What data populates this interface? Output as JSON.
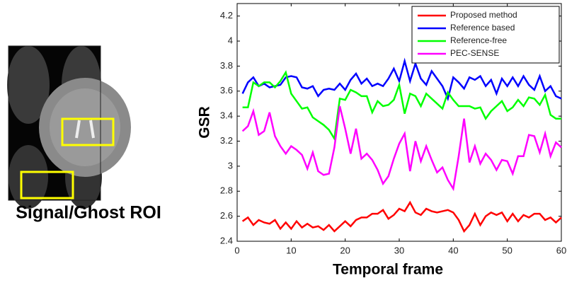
{
  "image_caption": "Signal/Ghost ROI",
  "chart_data": {
    "type": "line",
    "xlabel": "Temporal frame",
    "ylabel": "GSR",
    "x": [
      1,
      2,
      3,
      4,
      5,
      6,
      7,
      8,
      9,
      10,
      11,
      12,
      13,
      14,
      15,
      16,
      17,
      18,
      19,
      20,
      21,
      22,
      23,
      24,
      25,
      26,
      27,
      28,
      29,
      30,
      31,
      32,
      33,
      34,
      35,
      36,
      37,
      38,
      39,
      40,
      41,
      42,
      43,
      44,
      45,
      46,
      47,
      48,
      49,
      50,
      51,
      52,
      53,
      54,
      55,
      56,
      57,
      58,
      59,
      60
    ],
    "series": [
      {
        "name": "Proposed method",
        "color": "#ff0000",
        "values": [
          2.56,
          2.59,
          2.53,
          2.57,
          2.55,
          2.54,
          2.57,
          2.5,
          2.55,
          2.5,
          2.56,
          2.51,
          2.54,
          2.51,
          2.52,
          2.49,
          2.53,
          2.48,
          2.52,
          2.56,
          2.52,
          2.57,
          2.59,
          2.59,
          2.62,
          2.62,
          2.65,
          2.58,
          2.61,
          2.66,
          2.64,
          2.71,
          2.63,
          2.61,
          2.66,
          2.64,
          2.63,
          2.64,
          2.65,
          2.63,
          2.57,
          2.48,
          2.53,
          2.62,
          2.53,
          2.6,
          2.63,
          2.61,
          2.63,
          2.56,
          2.62,
          2.56,
          2.61,
          2.59,
          2.62,
          2.62,
          2.57,
          2.59,
          2.55,
          2.59
        ]
      },
      {
        "name": "Reference based",
        "color": "#0000ff",
        "values": [
          3.58,
          3.67,
          3.71,
          3.64,
          3.66,
          3.63,
          3.64,
          3.65,
          3.71,
          3.72,
          3.71,
          3.63,
          3.62,
          3.64,
          3.56,
          3.61,
          3.62,
          3.61,
          3.66,
          3.61,
          3.69,
          3.74,
          3.66,
          3.7,
          3.64,
          3.66,
          3.64,
          3.7,
          3.78,
          3.68,
          3.84,
          3.68,
          3.82,
          3.7,
          3.65,
          3.76,
          3.7,
          3.64,
          3.54,
          3.71,
          3.67,
          3.62,
          3.71,
          3.69,
          3.72,
          3.64,
          3.69,
          3.58,
          3.7,
          3.64,
          3.71,
          3.64,
          3.72,
          3.65,
          3.61,
          3.72,
          3.6,
          3.64,
          3.56,
          3.54
        ]
      },
      {
        "name": "Reference-free",
        "color": "#00ff00",
        "values": [
          3.47,
          3.47,
          3.67,
          3.64,
          3.67,
          3.67,
          3.63,
          3.68,
          3.75,
          3.58,
          3.52,
          3.46,
          3.47,
          3.39,
          3.36,
          3.33,
          3.29,
          3.22,
          3.54,
          3.53,
          3.61,
          3.59,
          3.56,
          3.56,
          3.43,
          3.52,
          3.48,
          3.49,
          3.53,
          3.65,
          3.42,
          3.58,
          3.56,
          3.48,
          3.58,
          3.54,
          3.5,
          3.46,
          3.59,
          3.53,
          3.48,
          3.48,
          3.48,
          3.46,
          3.47,
          3.38,
          3.44,
          3.48,
          3.52,
          3.44,
          3.47,
          3.53,
          3.48,
          3.55,
          3.54,
          3.49,
          3.57,
          3.41,
          3.38,
          3.38
        ]
      },
      {
        "name": "PEC-SENSE",
        "color": "#ff00ff",
        "values": [
          3.28,
          3.32,
          3.44,
          3.25,
          3.28,
          3.43,
          3.24,
          3.16,
          3.1,
          3.16,
          3.13,
          3.09,
          2.98,
          3.11,
          2.96,
          2.93,
          2.94,
          3.15,
          3.48,
          3.3,
          3.1,
          3.3,
          3.06,
          3.1,
          3.05,
          2.97,
          2.86,
          2.92,
          3.06,
          3.18,
          3.26,
          2.96,
          3.2,
          3.04,
          3.16,
          3.05,
          2.95,
          2.99,
          2.89,
          2.82,
          3.08,
          3.38,
          3.03,
          3.16,
          3.02,
          3.1,
          3.05,
          2.97,
          3.05,
          3.04,
          2.94,
          3.08,
          3.08,
          3.25,
          3.24,
          3.11,
          3.26,
          3.08,
          3.19,
          3.15
        ]
      }
    ],
    "xlim": [
      0,
      60
    ],
    "xticks": [
      0,
      10,
      20,
      30,
      40,
      50,
      60
    ],
    "ylim": [
      2.4,
      4.3
    ],
    "yticks": [
      2.4,
      2.6,
      2.8,
      3,
      3.2,
      3.4,
      3.6,
      3.8,
      4,
      4.2
    ],
    "grid": false,
    "legend": "upper right"
  }
}
